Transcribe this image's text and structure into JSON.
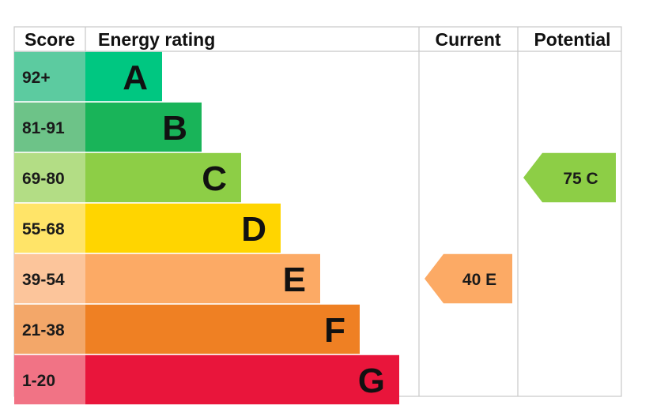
{
  "headers": {
    "score": "Score",
    "energy_rating": "Energy rating",
    "current": "Current",
    "potential": "Potential"
  },
  "chart_data": {
    "type": "bar",
    "title": "",
    "categories": [
      "A",
      "B",
      "C",
      "D",
      "E",
      "F",
      "G"
    ],
    "score_ranges": [
      "92+",
      "81-91",
      "69-80",
      "55-68",
      "39-54",
      "21-38",
      "1-20"
    ],
    "band_colors": [
      "#00c781",
      "#19b459",
      "#8dce46",
      "#ffd500",
      "#fcaa65",
      "#ef8023",
      "#e9153b"
    ],
    "score_cell_colors": [
      "#5ccba0",
      "#6dc388",
      "#b3dd85",
      "#ffe468",
      "#fcc59b",
      "#f3a769",
      "#f17385"
    ],
    "current": {
      "score": 40,
      "band": "E",
      "label": "40  E",
      "color": "#fcaa65"
    },
    "potential": {
      "score": 75,
      "band": "C",
      "label": "75  C",
      "color": "#8dce46"
    }
  }
}
